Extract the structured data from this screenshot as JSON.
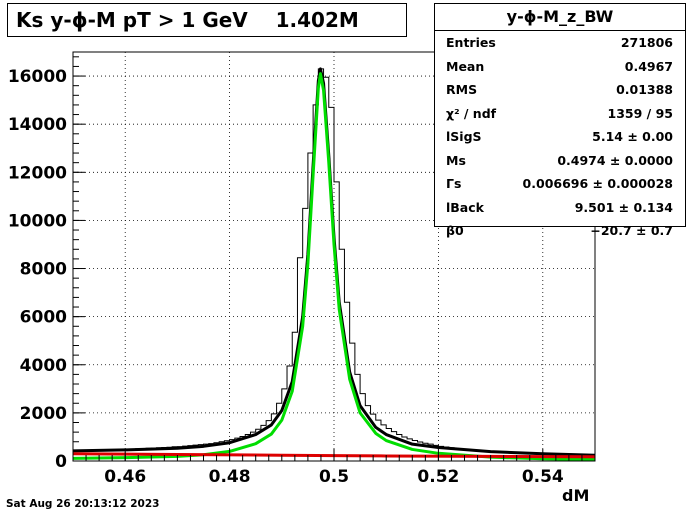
{
  "title": "Ks y-ϕ-M pT > 1 GeV    1.402M",
  "stats": {
    "name": "y-ϕ-M_z_BW",
    "rows": [
      {
        "label": "Entries",
        "value": "271806"
      },
      {
        "label": "Mean",
        "value": "0.4967"
      },
      {
        "label": "RMS",
        "value": "0.01388"
      },
      {
        "label": "χ² / ndf",
        "value": "1359 / 95"
      },
      {
        "label": "lSigS",
        "value": "5.14 ± 0.00"
      },
      {
        "label": "Ms",
        "value": "0.4974 ± 0.0000"
      },
      {
        "label": "Γs",
        "value": "0.006696 ± 0.000028"
      },
      {
        "label": "lBack",
        "value": "9.501 ± 0.134"
      },
      {
        "label": "β0",
        "value": "−20.7 ± 0.7"
      }
    ]
  },
  "footer": {
    "date": "Sat Aug 26 20:13:12 2023"
  },
  "colors": {
    "histogram": "#000000",
    "total_fit": "#000000",
    "signal_fit": "#00dd00",
    "background_fit": "#dd0000"
  },
  "chart_data": {
    "type": "line",
    "title": "Ks y-ϕ-M pT > 1 GeV    1.402M",
    "xlabel": "dM",
    "ylabel": "",
    "xlim": [
      0.45,
      0.55
    ],
    "ylim": [
      0,
      17000
    ],
    "grid": true,
    "legend": "none",
    "xticks": [
      0.46,
      0.48,
      0.5,
      0.52,
      0.54
    ],
    "xtick_labels": [
      "0.46",
      "0.48",
      "0.5",
      "0.52",
      "0.54"
    ],
    "yticks": [
      0,
      2000,
      4000,
      6000,
      8000,
      10000,
      12000,
      14000,
      16000
    ],
    "ytick_labels": [
      "0",
      "2000",
      "4000",
      "6000",
      "8000",
      "10000",
      "12000",
      "14000",
      "16000"
    ],
    "histogram": {
      "bin_low": 0.45,
      "bin_width": 0.001,
      "values": [
        430,
        440,
        440,
        450,
        450,
        460,
        460,
        470,
        480,
        490,
        500,
        500,
        510,
        520,
        530,
        540,
        550,
        560,
        570,
        590,
        600,
        620,
        640,
        660,
        680,
        700,
        720,
        760,
        800,
        840,
        890,
        950,
        1020,
        1100,
        1200,
        1320,
        1480,
        1680,
        1960,
        2400,
        3000,
        3950,
        5350,
        8450,
        10500,
        12800,
        14800,
        16300,
        15950,
        14700,
        11600,
        8800,
        6600,
        4900,
        3600,
        2800,
        2300,
        1950,
        1700,
        1500,
        1350,
        1220,
        1100,
        1000,
        920,
        850,
        790,
        740,
        700,
        650,
        610,
        580,
        550,
        520,
        500,
        480,
        460,
        440,
        420,
        400,
        390,
        380,
        360,
        350,
        340,
        330,
        320,
        310,
        300,
        300,
        290,
        280,
        280,
        270,
        260,
        260,
        250,
        250,
        240,
        240
      ]
    },
    "series": [
      {
        "name": "",
        "x": [
          0.45,
          0.46,
          0.47,
          0.475,
          0.48,
          0.485,
          0.488,
          0.49,
          0.492,
          0.494,
          0.495,
          0.496,
          0.497,
          0.4974,
          0.498,
          0.499,
          0.5,
          0.501,
          0.503,
          0.505,
          0.508,
          0.51,
          0.515,
          0.52,
          0.53,
          0.54,
          0.55
        ],
        "y": [
          420,
          460,
          530,
          610,
          760,
          1100,
          1500,
          2100,
          3300,
          6000,
          8600,
          12300,
          15800,
          16300,
          15700,
          12700,
          9300,
          6600,
          3700,
          2300,
          1400,
          1100,
          700,
          560,
          390,
          300,
          240
        ]
      },
      {
        "name": "",
        "x": [
          0.45,
          0.46,
          0.47,
          0.475,
          0.48,
          0.485,
          0.488,
          0.49,
          0.492,
          0.494,
          0.495,
          0.496,
          0.497,
          0.4974,
          0.498,
          0.499,
          0.5,
          0.501,
          0.503,
          0.505,
          0.508,
          0.51,
          0.515,
          0.52,
          0.53,
          0.54,
          0.55
        ],
        "y": [
          110,
          140,
          190,
          260,
          400,
          720,
          1120,
          1700,
          2900,
          5600,
          8200,
          11900,
          15500,
          16100,
          15400,
          12400,
          9000,
          6300,
          3400,
          2000,
          1150,
          850,
          480,
          320,
          160,
          95,
          60
        ]
      },
      {
        "name": "",
        "x": [
          0.45,
          0.47,
          0.49,
          0.5,
          0.51,
          0.53,
          0.55
        ],
        "y": [
          300,
          270,
          240,
          225,
          210,
          190,
          175
        ]
      }
    ]
  }
}
